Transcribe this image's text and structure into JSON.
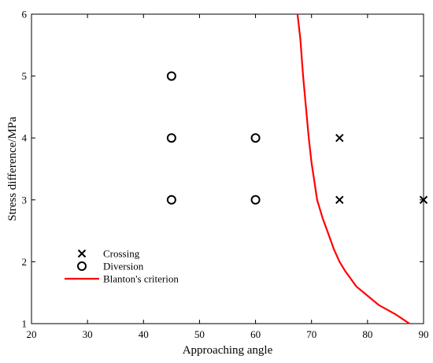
{
  "chart_data": {
    "type": "scatter",
    "xlabel": "Approaching angle",
    "ylabel": "Stress difference/MPa",
    "xlim": [
      20,
      90
    ],
    "ylim": [
      1,
      6
    ],
    "xticks": [
      20,
      30,
      40,
      50,
      60,
      70,
      80,
      90
    ],
    "yticks": [
      1,
      2,
      3,
      4,
      5,
      6
    ],
    "grid": false,
    "legend_position": "lower-left",
    "series": [
      {
        "name": "Crossing",
        "marker": "x",
        "color": "#000000",
        "points": [
          [
            75,
            4
          ],
          [
            75,
            3
          ],
          [
            90,
            3
          ]
        ]
      },
      {
        "name": "Diversion",
        "marker": "circle",
        "color": "#000000",
        "points": [
          [
            45,
            5
          ],
          [
            45,
            4
          ],
          [
            45,
            3
          ],
          [
            60,
            4
          ],
          [
            60,
            3
          ]
        ]
      },
      {
        "name": "Blanton's criterion",
        "marker": "line",
        "color": "#ff0000",
        "points": [
          [
            67.5,
            6
          ],
          [
            68,
            5.6
          ],
          [
            68.5,
            5.0
          ],
          [
            69,
            4.5
          ],
          [
            69.5,
            4.0
          ],
          [
            70,
            3.6
          ],
          [
            70.5,
            3.3
          ],
          [
            71,
            3.0
          ],
          [
            72,
            2.7
          ],
          [
            73,
            2.45
          ],
          [
            74,
            2.2
          ],
          [
            75,
            2.0
          ],
          [
            76,
            1.85
          ],
          [
            78,
            1.6
          ],
          [
            80,
            1.45
          ],
          [
            82,
            1.3
          ],
          [
            85,
            1.15
          ],
          [
            87.5,
            1.0
          ]
        ]
      }
    ]
  }
}
